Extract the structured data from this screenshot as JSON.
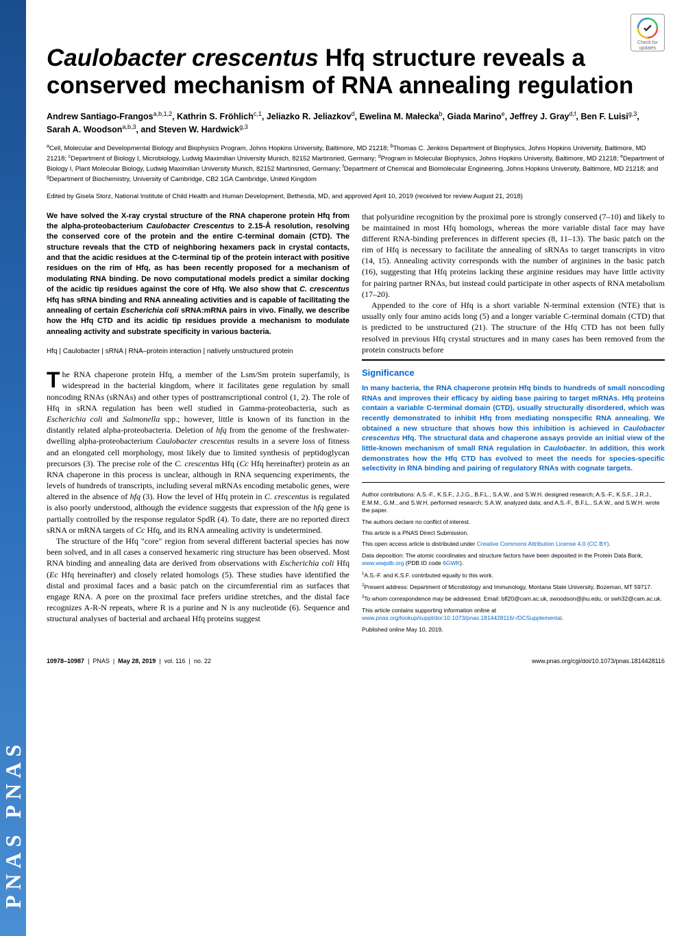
{
  "banner_text": "PNAS    PNAS",
  "check_updates_label": "Check for updates",
  "title_italic": "Caulobacter crescentus",
  "title_rest": " Hfq structure reveals a conserved mechanism of RNA annealing regulation",
  "authors_html": "Andrew Santiago-Frangos<sup>a,b,1,2</sup>, Kathrin S. Fröhlich<sup>c,1</sup>, Jeliazko R. Jeliazkov<sup>d</sup>, Ewelina M. Małecka<sup>b</sup>, Giada Marino<sup>e</sup>, Jeffrey J. Gray<sup>d,f</sup>, Ben F. Luisi<sup>g,3</sup>, Sarah A. Woodson<sup>a,b,3</sup>, and Steven W. Hardwick<sup>g,3</sup>",
  "affiliations_html": "<sup>a</sup>Cell, Molecular and Developmental Biology and Biophysics Program, Johns Hopkins University, Baltimore, MD 21218; <sup>b</sup>Thomas C. Jenkins Department of Biophysics, Johns Hopkins University, Baltimore, MD 21218; <sup>c</sup>Department of Biology I, Microbiology, Ludwig Maximilian University Munich, 82152 Martinsried, Germany; <sup>d</sup>Program in Molecular Biophysics, Johns Hopkins University, Baltimore, MD 21218; <sup>e</sup>Department of Biology I, Plant Molecular Biology, Ludwig Maximilian University Munich, 82152 Martinsried, Germany; <sup>f</sup>Department of Chemical and Biomolecular Engineering, Johns Hopkins University, Baltimore, MD 21218; and <sup>g</sup>Department of Biochemistry, University of Cambridge, CB2 1GA Cambridge, United Kingdom",
  "edited_by": "Edited by Gisela Storz, National Institute of Child Health and Human Development, Bethesda, MD, and approved April 10, 2019 (received for review August 21, 2018)",
  "abstract": "We have solved the X-ray crystal structure of the RNA chaperone protein Hfq from the alpha-proteobacterium <span class=\"italic\">Caulobacter Crescentus</span> to 2.15-Å resolution, resolving the conserved core of the protein and the entire C-terminal domain (CTD). The structure reveals that the CTD of neighboring hexamers pack in crystal contacts, and that the acidic residues at the C-terminal tip of the protein interact with positive residues on the rim of Hfq, as has been recently proposed for a mechanism of modulating RNA binding. De novo computational models predict a similar docking of the acidic tip residues against the core of Hfq. We also show that <span class=\"italic\">C. crescentus</span> Hfq has sRNA binding and RNA annealing activities and is capable of facilitating the annealing of certain <span class=\"italic\">Escherichia coli</span> sRNA:mRNA pairs in vivo. Finally, we describe how the Hfq CTD and its acidic tip residues provide a mechanism to modulate annealing activity and substrate specificity in various bacteria.",
  "keywords": "Hfq | <span class=\"italic\">Caulobacter</span> | sRNA | RNA–protein interaction | natively unstructured protein",
  "body_col1_p1": "he RNA chaperone protein Hfq, a member of the Lsm/Sm protein superfamily, is widespread in the bacterial kingdom, where it facilitates gene regulation by small noncoding RNAs (sRNAs) and other types of posttranscriptional control (1, 2). The role of Hfq in sRNA regulation has been well studied in Gamma-proteobacteria, such as <span class=\"italic\">Escherichia coli</span> and <span class=\"italic\">Salmonella</span> spp.; however, little is known of its function in the distantly related alpha-proteobacteria. Deletion of <span class=\"italic\">hfq</span> from the genome of the freshwater-dwelling alpha-proteobacterium <span class=\"italic\">Caulobacter crescentus</span> results in a severe loss of fitness and an elongated cell morphology, most likely due to limited synthesis of peptidoglycan precursors (3). The precise role of the <span class=\"italic\">C. crescentus</span> Hfq (<span class=\"italic\">Cc</span> Hfq hereinafter) protein as an RNA chaperone in this process is unclear, although in RNA sequencing experiments, the levels of hundreds of transcripts, including several mRNAs encoding metabolic genes, were altered in the absence of <span class=\"italic\">hfq</span> (3). How the level of Hfq protein in <span class=\"italic\">C. crescentus</span> is regulated is also poorly understood, although the evidence suggests that expression of the <span class=\"italic\">hfq</span> gene is partially controlled by the response regulator SpdR (4). To date, there are no reported direct sRNA or mRNA targets of <span class=\"italic\">Cc</span> Hfq, and its RNA annealing activity is undetermined.",
  "body_col1_p2": "The structure of the Hfq \"core\" region from several different bacterial species has now been solved, and in all cases a conserved hexameric ring structure has been observed. Most RNA binding and annealing data are derived from observations with <span class=\"italic\">Escherichia coli</span> Hfq (<span class=\"italic\">Ec</span> Hfq hereinafter) and closely related homologs (5). These studies have identified the distal and proximal faces and a basic patch on the circumferential rim as surfaces that engage RNA. A pore on the proximal face prefers uridine stretches, and the distal face recognizes A-R-N repeats, where R is a purine and N is any nucleotide (6). Sequence and structural analyses of bacterial and archaeal Hfq proteins suggest",
  "body_col2_p1": "that polyuridine recognition by the proximal pore is strongly conserved (7–10) and likely to be maintained in most Hfq homologs, whereas the more variable distal face may have different RNA-binding preferences in different species (8, 11–13). The basic patch on the rim of Hfq is necessary to facilitate the annealing of sRNAs to target transcripts in vitro (14, 15). Annealing activity corresponds with the number of arginines in the basic patch (16), suggesting that Hfq proteins lacking these arginine residues may have little activity for pairing partner RNAs, but instead could participate in other aspects of RNA metabolism (17–20).",
  "body_col2_p2": "Appended to the core of Hfq is a short variable N-terminal extension (NTE) that is usually only four amino acids long (5) and a longer variable C-terminal domain (CTD) that is predicted to be unstructured (21). The structure of the Hfq CTD has not been fully resolved in previous Hfq crystal structures and in many cases has been removed from the protein constructs before",
  "significance_title": "Significance",
  "significance_text": "In many bacteria, the RNA chaperone protein Hfq binds to hundreds of small noncoding RNAs and improves their efficacy by aiding base pairing to target mRNAs. Hfq proteins contain a variable C-terminal domain (CTD), usually structurally disordered, which was recently demonstrated to inhibit Hfq from mediating nonspecific RNA annealing. We obtained a new structure that shows how this inhibition is achieved in <span class=\"italic\">Caulobacter crescentus</span> Hfq. The structural data and chaperone assays provide an initial view of the little-known mechanism of small RNA regulation in <span class=\"italic\">Caulobacter</span>. In addition, this work demonstrates how the Hfq CTD has evolved to meet the needs for species-specific selectivity in RNA binding and pairing of regulatory RNAs with cognate targets.",
  "footnotes": {
    "contributions": "Author contributions: A.S.-F., K.S.F., J.J.G., B.F.L., S.A.W., and S.W.H. designed research; A.S.-F., K.S.F., J.R.J., E.M.M., G.M., and S.W.H. performed research; S.A.W. analyzed data; and A.S.-F., B.F.L., S.A.W., and S.W.H. wrote the paper.",
    "conflict": "The authors declare no conflict of interest.",
    "direct": "This article is a PNAS Direct Submission.",
    "license_text": "This open access article is distributed under ",
    "license_link": "Creative Commons Attribution License 4.0 (CC BY)",
    "deposition_text": "Data deposition: The atomic coordinates and structure factors have been deposited in the Protein Data Bank, ",
    "deposition_link1": "www.wwpdb.org",
    "deposition_mid": " (PDB ID code ",
    "deposition_link2": "6GWK",
    "deposition_end": ").",
    "equal": "A.S.-F. and K.S.F. contributed equally to this work.",
    "present": "Present address: Department of Microbiology and Immunology, Montana State University, Bozeman, MT 59717.",
    "corr": "To whom correspondence may be addressed. Email: bfl20@cam.ac.uk, swoodson@jhu.edu, or swh32@cam.ac.uk.",
    "supp_text": "This article contains supporting information online at ",
    "supp_link": "www.pnas.org/lookup/suppl/doi:10.1073/pnas.1814428116/-/DCSupplemental",
    "published": "Published online May 10, 2019."
  },
  "footer": {
    "pages": "10978–10987",
    "journal": "PNAS",
    "date": "May 28, 2019",
    "vol": "vol. 116",
    "issue": "no. 22",
    "doi": "www.pnas.org/cgi/doi/10.1073/pnas.1814428116"
  },
  "colors": {
    "link": "#0066cc",
    "significance": "#0066cc",
    "banner_start": "#1a4d8f",
    "banner_end": "#4a8fd4"
  }
}
